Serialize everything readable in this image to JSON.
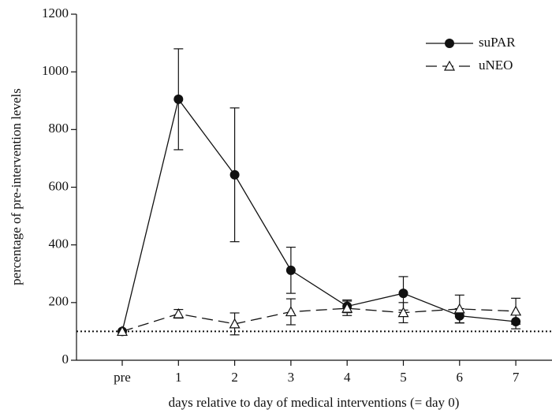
{
  "chart_data": {
    "type": "line",
    "x_label": "days relative to day of medical interventions (= day 0)",
    "y_label": "percentage of pre-intervention levels",
    "categories": [
      "pre",
      "1",
      "2",
      "3",
      "4",
      "5",
      "6",
      "7"
    ],
    "series": [
      {
        "name": "suPAR",
        "color": "#111111",
        "marker": "circle",
        "dashed": false,
        "values": [
          100,
          905,
          643,
          312,
          187,
          232,
          154,
          134
        ],
        "errors": [
          0,
          175,
          232,
          80,
          22,
          58,
          25,
          25
        ]
      },
      {
        "name": "uNEO",
        "color": "#111111",
        "marker": "triangle",
        "dashed": true,
        "values": [
          100,
          161,
          126,
          168,
          180,
          165,
          178,
          170
        ],
        "errors": [
          0,
          15,
          38,
          45,
          25,
          35,
          48,
          45
        ]
      }
    ],
    "reference_line": 100,
    "ylim": [
      0,
      1200
    ],
    "yticks": [
      0,
      200,
      400,
      600,
      800,
      1000,
      1200
    ],
    "legend": "upper right"
  }
}
